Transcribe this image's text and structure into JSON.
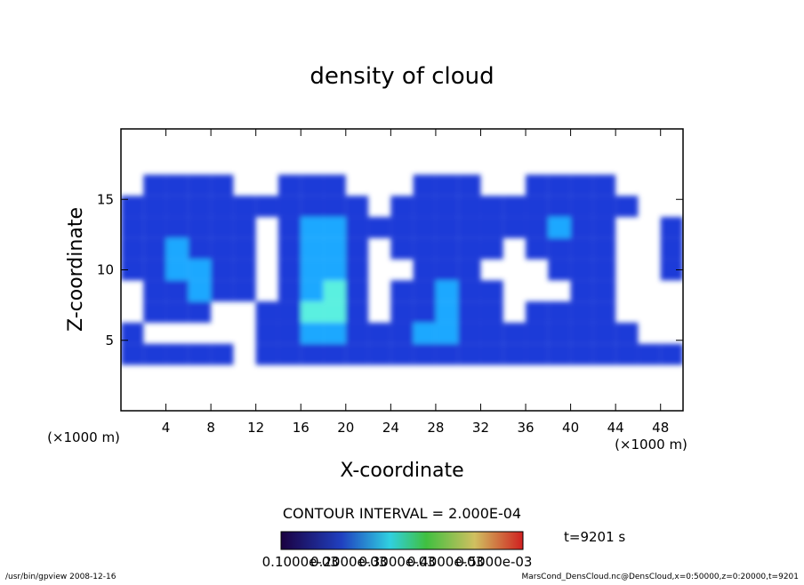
{
  "chart_data": {
    "type": "contour",
    "title": "density of cloud",
    "xlabel": "X-coordinate",
    "ylabel": "Z-coordinate",
    "xunit": "(×1000 m)",
    "yunit": "(×1000 m)",
    "xlim": [
      0,
      50
    ],
    "ylim": [
      0,
      20
    ],
    "xticks": [
      4,
      8,
      12,
      16,
      20,
      24,
      28,
      32,
      36,
      40,
      44,
      48
    ],
    "yticks": [
      5,
      10,
      15
    ],
    "x": [
      1,
      3,
      5,
      7,
      9,
      11,
      13,
      15,
      17,
      19,
      21,
      23,
      25,
      27,
      29,
      31,
      33,
      35,
      37,
      39,
      41,
      43,
      45,
      47,
      49
    ],
    "z_coords": [
      16,
      14.5,
      13,
      11.5,
      10,
      8.5,
      7,
      5.5,
      4
    ],
    "z": [
      [
        0,
        5e-05,
        5e-05,
        5e-05,
        5e-05,
        0,
        0,
        5e-05,
        5e-05,
        5e-05,
        0,
        0,
        0,
        5e-05,
        5e-05,
        5e-05,
        0,
        0,
        5e-05,
        5e-05,
        5e-05,
        5e-05,
        0,
        0,
        0
      ],
      [
        5e-05,
        5e-05,
        0.0001,
        0.0001,
        5e-05,
        5e-05,
        5e-05,
        0.0001,
        0.0001,
        0.0001,
        5e-05,
        0,
        5e-05,
        0.0001,
        0.0001,
        0.0001,
        5e-05,
        5e-05,
        0.0001,
        0.0001,
        0.0001,
        5e-05,
        5e-05,
        0,
        0
      ],
      [
        0.0001,
        0.0001,
        0.0001,
        0.0001,
        0.0001,
        5e-05,
        0,
        0.0001,
        0.0002,
        0.0002,
        5e-05,
        5e-05,
        5e-05,
        0.0001,
        0.0001,
        0.0001,
        5e-05,
        5e-05,
        0.0001,
        0.0002,
        0.0001,
        5e-05,
        0,
        0,
        5e-05
      ],
      [
        5e-05,
        0.0001,
        0.0002,
        0.0001,
        0.0001,
        5e-05,
        0,
        0.0001,
        0.0002,
        0.0002,
        5e-05,
        0,
        5e-05,
        0.0001,
        0.0001,
        0.0001,
        5e-05,
        0,
        5e-05,
        0.0001,
        0.0001,
        5e-05,
        0,
        0,
        5e-05
      ],
      [
        5e-05,
        0.0001,
        0.0002,
        0.0002,
        0.0001,
        5e-05,
        0,
        5e-05,
        0.0002,
        0.0002,
        5e-05,
        0,
        0,
        5e-05,
        0.0001,
        5e-05,
        0,
        0,
        0,
        5e-05,
        5e-05,
        5e-05,
        0,
        0,
        5e-05
      ],
      [
        0,
        5e-05,
        0.0001,
        0.0002,
        0.0001,
        5e-05,
        0,
        5e-05,
        0.0002,
        0.0003,
        5e-05,
        0,
        5e-05,
        0.0001,
        0.0002,
        5e-05,
        5e-05,
        0,
        0,
        0,
        5e-05,
        5e-05,
        0,
        0,
        0
      ],
      [
        0,
        5e-05,
        5e-05,
        5e-05,
        0,
        0,
        5e-05,
        0.0001,
        0.0003,
        0.0003,
        0.0001,
        0,
        5e-05,
        0.0001,
        0.0002,
        0.0001,
        5e-05,
        0,
        5e-05,
        5e-05,
        5e-05,
        5e-05,
        0,
        0,
        0
      ],
      [
        5e-05,
        0,
        0,
        0,
        0,
        0,
        5e-05,
        0.0001,
        0.0002,
        0.0002,
        0.0001,
        5e-05,
        0.0001,
        0.0002,
        0.0002,
        0.0001,
        5e-05,
        5e-05,
        5e-05,
        5e-05,
        5e-05,
        5e-05,
        5e-05,
        0,
        0
      ],
      [
        5e-05,
        5e-05,
        5e-05,
        5e-05,
        5e-05,
        0,
        5e-05,
        5e-05,
        5e-05,
        5e-05,
        5e-05,
        5e-05,
        5e-05,
        5e-05,
        5e-05,
        5e-05,
        5e-05,
        5e-05,
        5e-05,
        5e-05,
        5e-05,
        5e-05,
        5e-05,
        0.0001,
        5e-05
      ]
    ],
    "colormap": [
      "#7a00b4",
      "#1a3ad8",
      "#1ea8ff",
      "#5af0e0"
    ],
    "contour_interval_text": "CONTOUR INTERVAL = 2.000E-04",
    "time_text": "t=9201 s",
    "colorbar_labels": [
      "0.1000e-03",
      "0.2000e-03",
      "0.3000e-03",
      "0.4000e-03",
      "0.5000e-03"
    ],
    "footer_left": "/usr/bin/gpview   2008-12-16",
    "footer_right": "MarsCond_DensCloud.nc@DensCloud,x=0:50000,z=0:20000,t=9201"
  }
}
